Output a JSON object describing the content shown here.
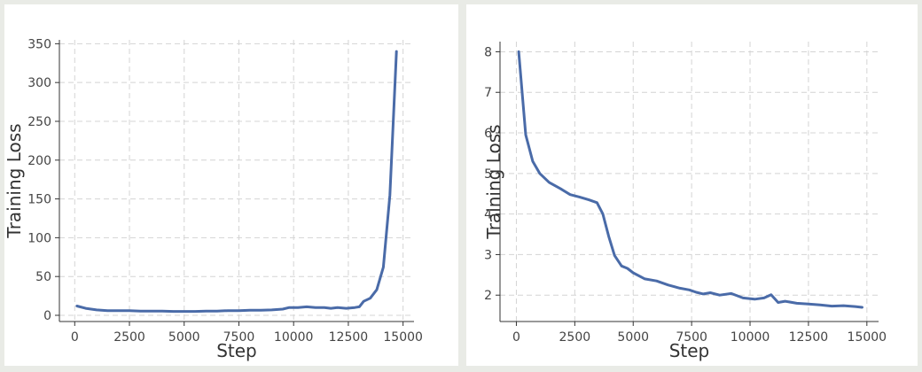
{
  "chart_data": [
    {
      "type": "line",
      "xlabel": "Step",
      "ylabel": "Training Loss",
      "xlim": [
        -700,
        15500
      ],
      "ylim": [
        -8,
        355
      ],
      "xticks": [
        0,
        2500,
        5000,
        7500,
        10000,
        12500,
        15000
      ],
      "yticks": [
        0,
        50,
        100,
        150,
        200,
        250,
        300,
        350
      ],
      "grid": true,
      "series": [
        {
          "color": "#4a6ba8",
          "x": [
            100,
            500,
            1000,
            1500,
            2000,
            2500,
            3000,
            3500,
            4000,
            4500,
            5000,
            5500,
            6000,
            6500,
            7000,
            7500,
            8000,
            8500,
            9000,
            9500,
            9800,
            10200,
            10600,
            11000,
            11400,
            11700,
            12000,
            12400,
            12800,
            13000,
            13200,
            13500,
            13800,
            14100,
            14400,
            14700
          ],
          "y": [
            12,
            9,
            7,
            6,
            6,
            6,
            5.5,
            5.5,
            5.5,
            5,
            5,
            5,
            5.5,
            5.5,
            6,
            6,
            6.5,
            6.5,
            7,
            8,
            10,
            10,
            11,
            10,
            10,
            9,
            10,
            9,
            10,
            11,
            18,
            22,
            33,
            62,
            155,
            340
          ]
        }
      ]
    },
    {
      "type": "line",
      "xlabel": "Step",
      "ylabel": "Training Loss",
      "xlim": [
        -700,
        15500
      ],
      "ylim": [
        1.35,
        8.25
      ],
      "xticks": [
        0,
        2500,
        5000,
        7500,
        10000,
        12500,
        15000
      ],
      "yticks": [
        2,
        3,
        4,
        5,
        6,
        7,
        8
      ],
      "grid": true,
      "series": [
        {
          "color": "#4a6ba8",
          "x": [
            100,
            400,
            700,
            1000,
            1400,
            1900,
            2300,
            2700,
            3100,
            3450,
            3700,
            3950,
            4200,
            4500,
            4750,
            5000,
            5500,
            6000,
            6500,
            7000,
            7400,
            7700,
            8000,
            8300,
            8700,
            9200,
            9700,
            10200,
            10600,
            10900,
            11200,
            11500,
            12000,
            12500,
            13000,
            13500,
            14000,
            14500,
            14800
          ],
          "y": [
            8.0,
            5.95,
            5.3,
            5.0,
            4.78,
            4.62,
            4.48,
            4.42,
            4.35,
            4.28,
            4.0,
            3.45,
            2.98,
            2.72,
            2.66,
            2.55,
            2.4,
            2.35,
            2.25,
            2.17,
            2.13,
            2.07,
            2.03,
            2.06,
            2.0,
            2.04,
            1.93,
            1.9,
            1.93,
            2.01,
            1.82,
            1.85,
            1.8,
            1.78,
            1.76,
            1.73,
            1.74,
            1.72,
            1.7
          ]
        }
      ]
    }
  ]
}
